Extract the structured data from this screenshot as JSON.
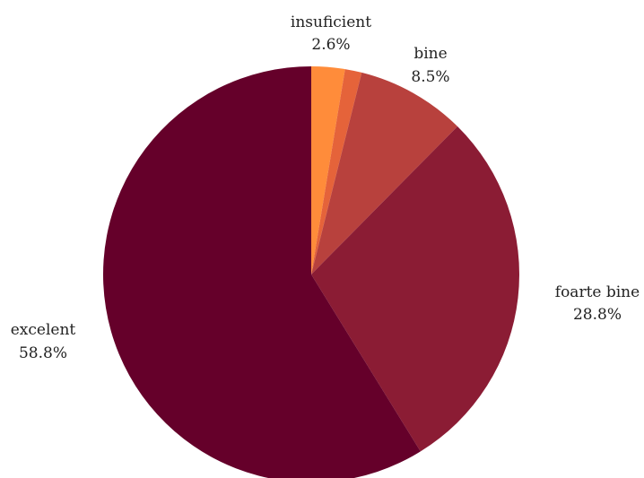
{
  "chart_data": {
    "type": "pie",
    "slices": [
      {
        "label": "insuficient",
        "value": 2.6,
        "value_label": "2.6%",
        "color": "#FF8C3A"
      },
      {
        "label": "",
        "value": 1.3,
        "value_label": "",
        "color": "#E5633A"
      },
      {
        "label": "bine",
        "value": 8.5,
        "value_label": "8.5%",
        "color": "#B8413D"
      },
      {
        "label": "foarte bine",
        "value": 28.8,
        "value_label": "28.8%",
        "color": "#8B1C34"
      },
      {
        "label": "excelent",
        "value": 58.8,
        "value_label": "58.8%",
        "color": "#65002A"
      }
    ],
    "start_angle_deg": 0,
    "direction": "clockwise",
    "legend": "none",
    "title": ""
  }
}
